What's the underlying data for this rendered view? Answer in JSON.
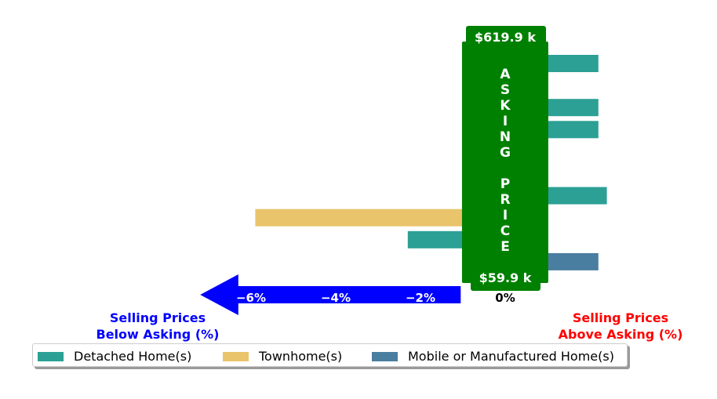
{
  "chart_data": {
    "type": "bar",
    "orientation": "horizontal",
    "series": [
      {
        "name": "Detached Home(s)",
        "color": "#2ca095",
        "rows": [
          0,
          1,
          2,
          3,
          4,
          5,
          6,
          8
        ],
        "values": [
          2.2,
          -0.6,
          2.2,
          2.2,
          -0.15,
          -0.9,
          2.4,
          -2.3
        ]
      },
      {
        "name": "Townhome(s)",
        "color": "#e9c46a",
        "rows": [
          7
        ],
        "values": [
          -5.9
        ]
      },
      {
        "name": "Mobile or Manufactured Home(s)",
        "color": "#4a7ea0",
        "rows": [
          9
        ],
        "values": [
          2.2
        ]
      }
    ],
    "xlim": [
      -7.2,
      4.9
    ],
    "xticks": [
      {
        "value": -6,
        "label": "−6%"
      },
      {
        "value": -4,
        "label": "−4%"
      },
      {
        "value": -2,
        "label": "−2%"
      },
      {
        "value": 0,
        "label": "0%"
      }
    ],
    "asking_price_panel": {
      "top_label": "$619.9 k",
      "bottom_label": "$59.9 k",
      "letters": [
        "A",
        "S",
        "K",
        "I",
        "N",
        "G",
        "",
        "P",
        "R",
        "I",
        "C",
        "E"
      ],
      "color": "#008000"
    },
    "below_label": {
      "lines": [
        "Selling Prices",
        "Below Asking (%)"
      ],
      "color": "#0000ff"
    },
    "above_label": {
      "lines": [
        "Selling Prices",
        "Above Asking (%)"
      ],
      "color": "#ff0000"
    },
    "arrow_color": "#0000ff",
    "legend": {
      "placement": "bottom",
      "columns": 3
    }
  }
}
